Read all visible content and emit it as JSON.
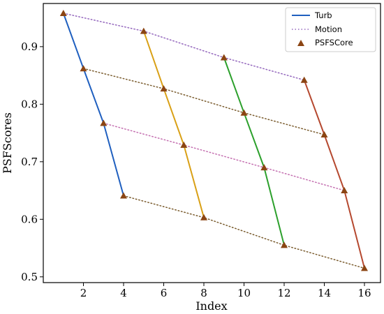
{
  "chart_data": {
    "type": "line",
    "title": "",
    "xlabel": "Index",
    "ylabel": "PSFScores",
    "xlim": [
      0.0,
      16.8
    ],
    "ylim": [
      0.49,
      0.975
    ],
    "xticks": [
      2,
      4,
      6,
      8,
      10,
      12,
      14,
      16
    ],
    "yticks": [
      0.5,
      0.6,
      0.7,
      0.8,
      0.9
    ],
    "grid": false,
    "legend_position": "top-right",
    "legend": [
      {
        "label": "Turb",
        "style": "solid",
        "color": "#1f5fbf"
      },
      {
        "label": "Motion",
        "style": "dotted",
        "color": "#9467bd"
      },
      {
        "label": "PSFSCore",
        "style": "marker",
        "color": "#8b4513"
      }
    ],
    "turb_series": [
      {
        "name": "Turb",
        "color": "#1f5fbf",
        "x": [
          1,
          2,
          3,
          4
        ],
        "y": [
          0.958,
          0.862,
          0.767,
          0.641
        ]
      },
      {
        "name": "",
        "color": "#d9a016",
        "x": [
          5,
          6,
          7,
          8
        ],
        "y": [
          0.927,
          0.827,
          0.729,
          0.603
        ]
      },
      {
        "name": "",
        "color": "#2ca02c",
        "x": [
          9,
          10,
          11,
          12
        ],
        "y": [
          0.881,
          0.785,
          0.69,
          0.555
        ]
      },
      {
        "name": "",
        "color": "#b5482f",
        "x": [
          13,
          14,
          15,
          16
        ],
        "y": [
          0.842,
          0.747,
          0.65,
          0.515
        ]
      }
    ],
    "motion_series": [
      {
        "name": "Motion",
        "color": "#9467bd",
        "x": [
          1,
          5,
          9,
          13
        ],
        "y": [
          0.958,
          0.927,
          0.881,
          0.842
        ]
      },
      {
        "name": "",
        "color": "#7a5c2e",
        "x": [
          2,
          6,
          10,
          14
        ],
        "y": [
          0.862,
          0.827,
          0.785,
          0.747
        ]
      },
      {
        "name": "",
        "color": "#c46fb0",
        "x": [
          3,
          7,
          11,
          15
        ],
        "y": [
          0.767,
          0.729,
          0.69,
          0.65
        ]
      },
      {
        "name": "",
        "color": "#7a5c2e",
        "x": [
          4,
          8,
          12,
          16
        ],
        "y": [
          0.641,
          0.603,
          0.555,
          0.515
        ]
      }
    ],
    "markers": {
      "name": "PSFSCore",
      "color": "#8b4513",
      "x": [
        1,
        2,
        3,
        4,
        5,
        6,
        7,
        8,
        9,
        10,
        11,
        12,
        13,
        14,
        15,
        16
      ],
      "y": [
        0.958,
        0.862,
        0.767,
        0.641,
        0.927,
        0.827,
        0.729,
        0.603,
        0.881,
        0.785,
        0.69,
        0.555,
        0.842,
        0.747,
        0.65,
        0.515
      ]
    }
  }
}
